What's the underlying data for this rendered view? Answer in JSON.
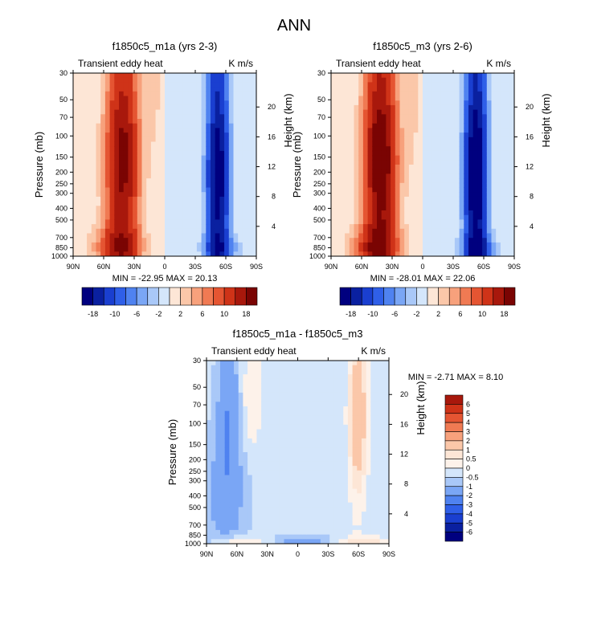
{
  "page_title": "ANN",
  "chart_data": [
    {
      "type": "heatmap",
      "title": "f1850c5_m1a (yrs 2-3)",
      "subtitle_left": "Transient eddy heat",
      "units": "K m/s",
      "ylabel": "Pressure (mb)",
      "ylabel_right": "Height (km)",
      "x_ticks": [
        "90N",
        "60N",
        "30N",
        "0",
        "30S",
        "60S",
        "90S"
      ],
      "y_ticks": [
        "30",
        "50",
        "70",
        "100",
        "150",
        "200",
        "250",
        "300",
        "400",
        "500",
        "700",
        "850",
        "1000"
      ],
      "y_ticks_right": [
        "20",
        "16",
        "12",
        "8",
        "4"
      ],
      "min_max": "MIN = -22.95  MAX = 20.13",
      "colorbar": {
        "orientation": "horizontal",
        "labels": [
          "-18",
          "-10",
          "-6",
          "-2",
          "2",
          "6",
          "10",
          "18"
        ],
        "colors": [
          "#00007f",
          "#0a20a0",
          "#1a3fd0",
          "#2f5fe8",
          "#4f82f0",
          "#7aa6f5",
          "#a9c8f8",
          "#d4e6fb",
          "#fde6d6",
          "#fbc7a9",
          "#f7a17c",
          "#f07a53",
          "#e55532",
          "#cf3318",
          "#a8180c",
          "#7a0403"
        ]
      }
    },
    {
      "type": "heatmap",
      "title": "f1850c5_m3 (yrs 2-6)",
      "subtitle_left": "Transient eddy heat",
      "units": "K m/s",
      "ylabel": "Pressure (mb)",
      "ylabel_right": "Height (km)",
      "x_ticks": [
        "90N",
        "60N",
        "30N",
        "0",
        "30S",
        "60S",
        "90S"
      ],
      "y_ticks": [
        "30",
        "50",
        "70",
        "100",
        "150",
        "200",
        "250",
        "300",
        "400",
        "500",
        "700",
        "850",
        "1000"
      ],
      "y_ticks_right": [
        "20",
        "16",
        "12",
        "8",
        "4"
      ],
      "min_max": "MIN = -28.01  MAX =  22.06",
      "colorbar": {
        "orientation": "horizontal",
        "labels": [
          "-18",
          "-10",
          "-6",
          "-2",
          "2",
          "6",
          "10",
          "18"
        ],
        "colors": [
          "#00007f",
          "#0a20a0",
          "#1a3fd0",
          "#2f5fe8",
          "#4f82f0",
          "#7aa6f5",
          "#a9c8f8",
          "#d4e6fb",
          "#fde6d6",
          "#fbc7a9",
          "#f7a17c",
          "#f07a53",
          "#e55532",
          "#cf3318",
          "#a8180c",
          "#7a0403"
        ]
      }
    },
    {
      "type": "heatmap",
      "title": "f1850c5_m1a - f1850c5_m3",
      "subtitle_left": "Transient eddy heat",
      "units": "K m/s",
      "ylabel": "Pressure (mb)",
      "ylabel_right": "Height (km)",
      "x_ticks": [
        "90N",
        "60N",
        "30N",
        "0",
        "30S",
        "60S",
        "90S"
      ],
      "y_ticks": [
        "30",
        "50",
        "70",
        "100",
        "150",
        "200",
        "250",
        "300",
        "400",
        "500",
        "700",
        "850",
        "1000"
      ],
      "y_ticks_right": [
        "20",
        "16",
        "12",
        "8",
        "4"
      ],
      "min_max": "MIN =  -2.71  MAX =   8.10",
      "colorbar": {
        "orientation": "vertical",
        "labels": [
          "6",
          "5",
          "4",
          "3",
          "2",
          "1",
          "0.5",
          "0",
          "-0.5",
          "-1",
          "-2",
          "-3",
          "-4",
          "-5",
          "-6"
        ],
        "colors": [
          "#a8180c",
          "#cf3318",
          "#e55532",
          "#f07a53",
          "#f7a17c",
          "#fbc7a9",
          "#fde6d6",
          "#fdf2ea",
          "#d4e6fb",
          "#a9c8f8",
          "#7aa6f5",
          "#4f82f0",
          "#2f5fe8",
          "#1a3fd0",
          "#0a20a0",
          "#00007f"
        ]
      }
    }
  ]
}
